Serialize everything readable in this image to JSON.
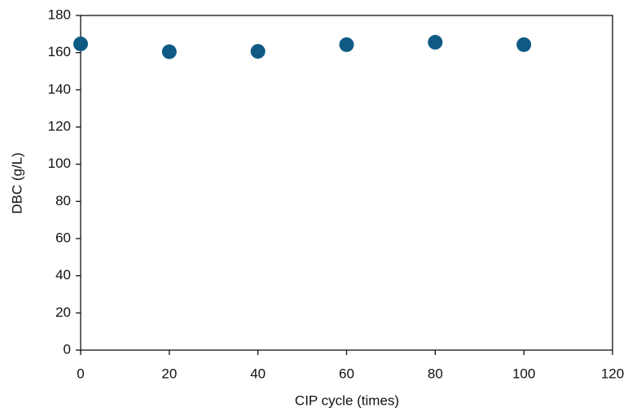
{
  "chart_data": {
    "type": "scatter",
    "x_label": "CIP cycle (times)",
    "y_label": "DBC (g/L)",
    "series": [
      {
        "color": "#0e5a85",
        "x": [
          0,
          20,
          40,
          60,
          80,
          100
        ],
        "values": [
          164.7,
          160.5,
          160.7,
          164.3,
          165.6,
          164.3
        ]
      }
    ],
    "xlim": [
      0,
      120
    ],
    "xticks": [
      0,
      20,
      40,
      60,
      80,
      100,
      120
    ],
    "ylim": [
      0,
      180
    ],
    "yticks": [
      0,
      20,
      40,
      60,
      80,
      100,
      120,
      140,
      160,
      180
    ]
  }
}
